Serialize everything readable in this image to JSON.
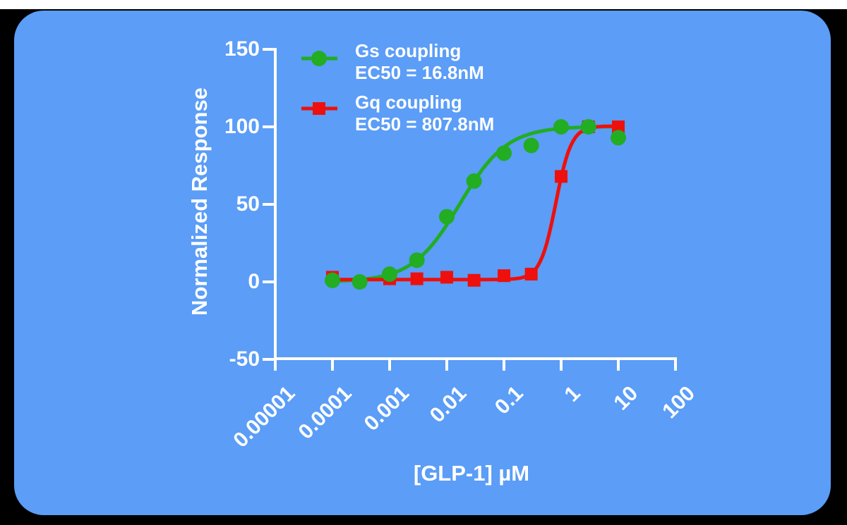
{
  "page": {
    "background_color": "#000000",
    "top_strip_color": "#ffffff",
    "card_color": "#5b9df7"
  },
  "chart_data": {
    "type": "scatter",
    "subtype": "dose-response curves with logistic fits",
    "title": "",
    "xlabel": "[GLP-1] µM",
    "ylabel": "Normalized Response",
    "x_scale": "log10",
    "x_tick_labels": [
      "0.00001",
      "0.0001",
      "0.001",
      "0.01",
      "0.1",
      "1",
      "10",
      "100"
    ],
    "y_ticks": [
      150,
      100,
      50,
      0,
      -50
    ],
    "ylim": [
      -50,
      150
    ],
    "xlim": [
      1e-05,
      100
    ],
    "grid": false,
    "axis_color": "#ffffff",
    "text_color": "#ffffff",
    "legend": {
      "position": "top-left inside plot"
    },
    "series": [
      {
        "name": "Gs coupling",
        "ec50_label": "EC50 = 16.8nM",
        "ec50_nM": 16.8,
        "color": "#22ad22",
        "marker": "circle",
        "points": {
          "x": [
            0.0001,
            0.0003,
            0.001,
            0.003,
            0.01,
            0.03,
            0.1,
            0.3,
            1,
            3,
            10
          ],
          "y": [
            1,
            0,
            5,
            14,
            42,
            65,
            83,
            88,
            100,
            100,
            93
          ]
        },
        "fit": {
          "bottom": 0,
          "top": 100.3,
          "ec50_uM": 0.0168,
          "hill_est": 1.05
        }
      },
      {
        "name": "Gq coupling",
        "ec50_label": "EC50 = 807.8nM",
        "ec50_nM": 807.8,
        "color": "#ee100c",
        "marker": "square",
        "points": {
          "x": [
            0.0001,
            0.001,
            0.003,
            0.01,
            0.03,
            0.1,
            0.3,
            1,
            3,
            10
          ],
          "y": [
            3,
            2,
            2,
            3,
            1,
            4,
            5,
            68,
            100,
            100
          ]
        },
        "fit": {
          "bottom": 1.5,
          "top": 100.5,
          "ec50_uM": 0.8078,
          "hill_est": 3.2
        }
      }
    ]
  }
}
